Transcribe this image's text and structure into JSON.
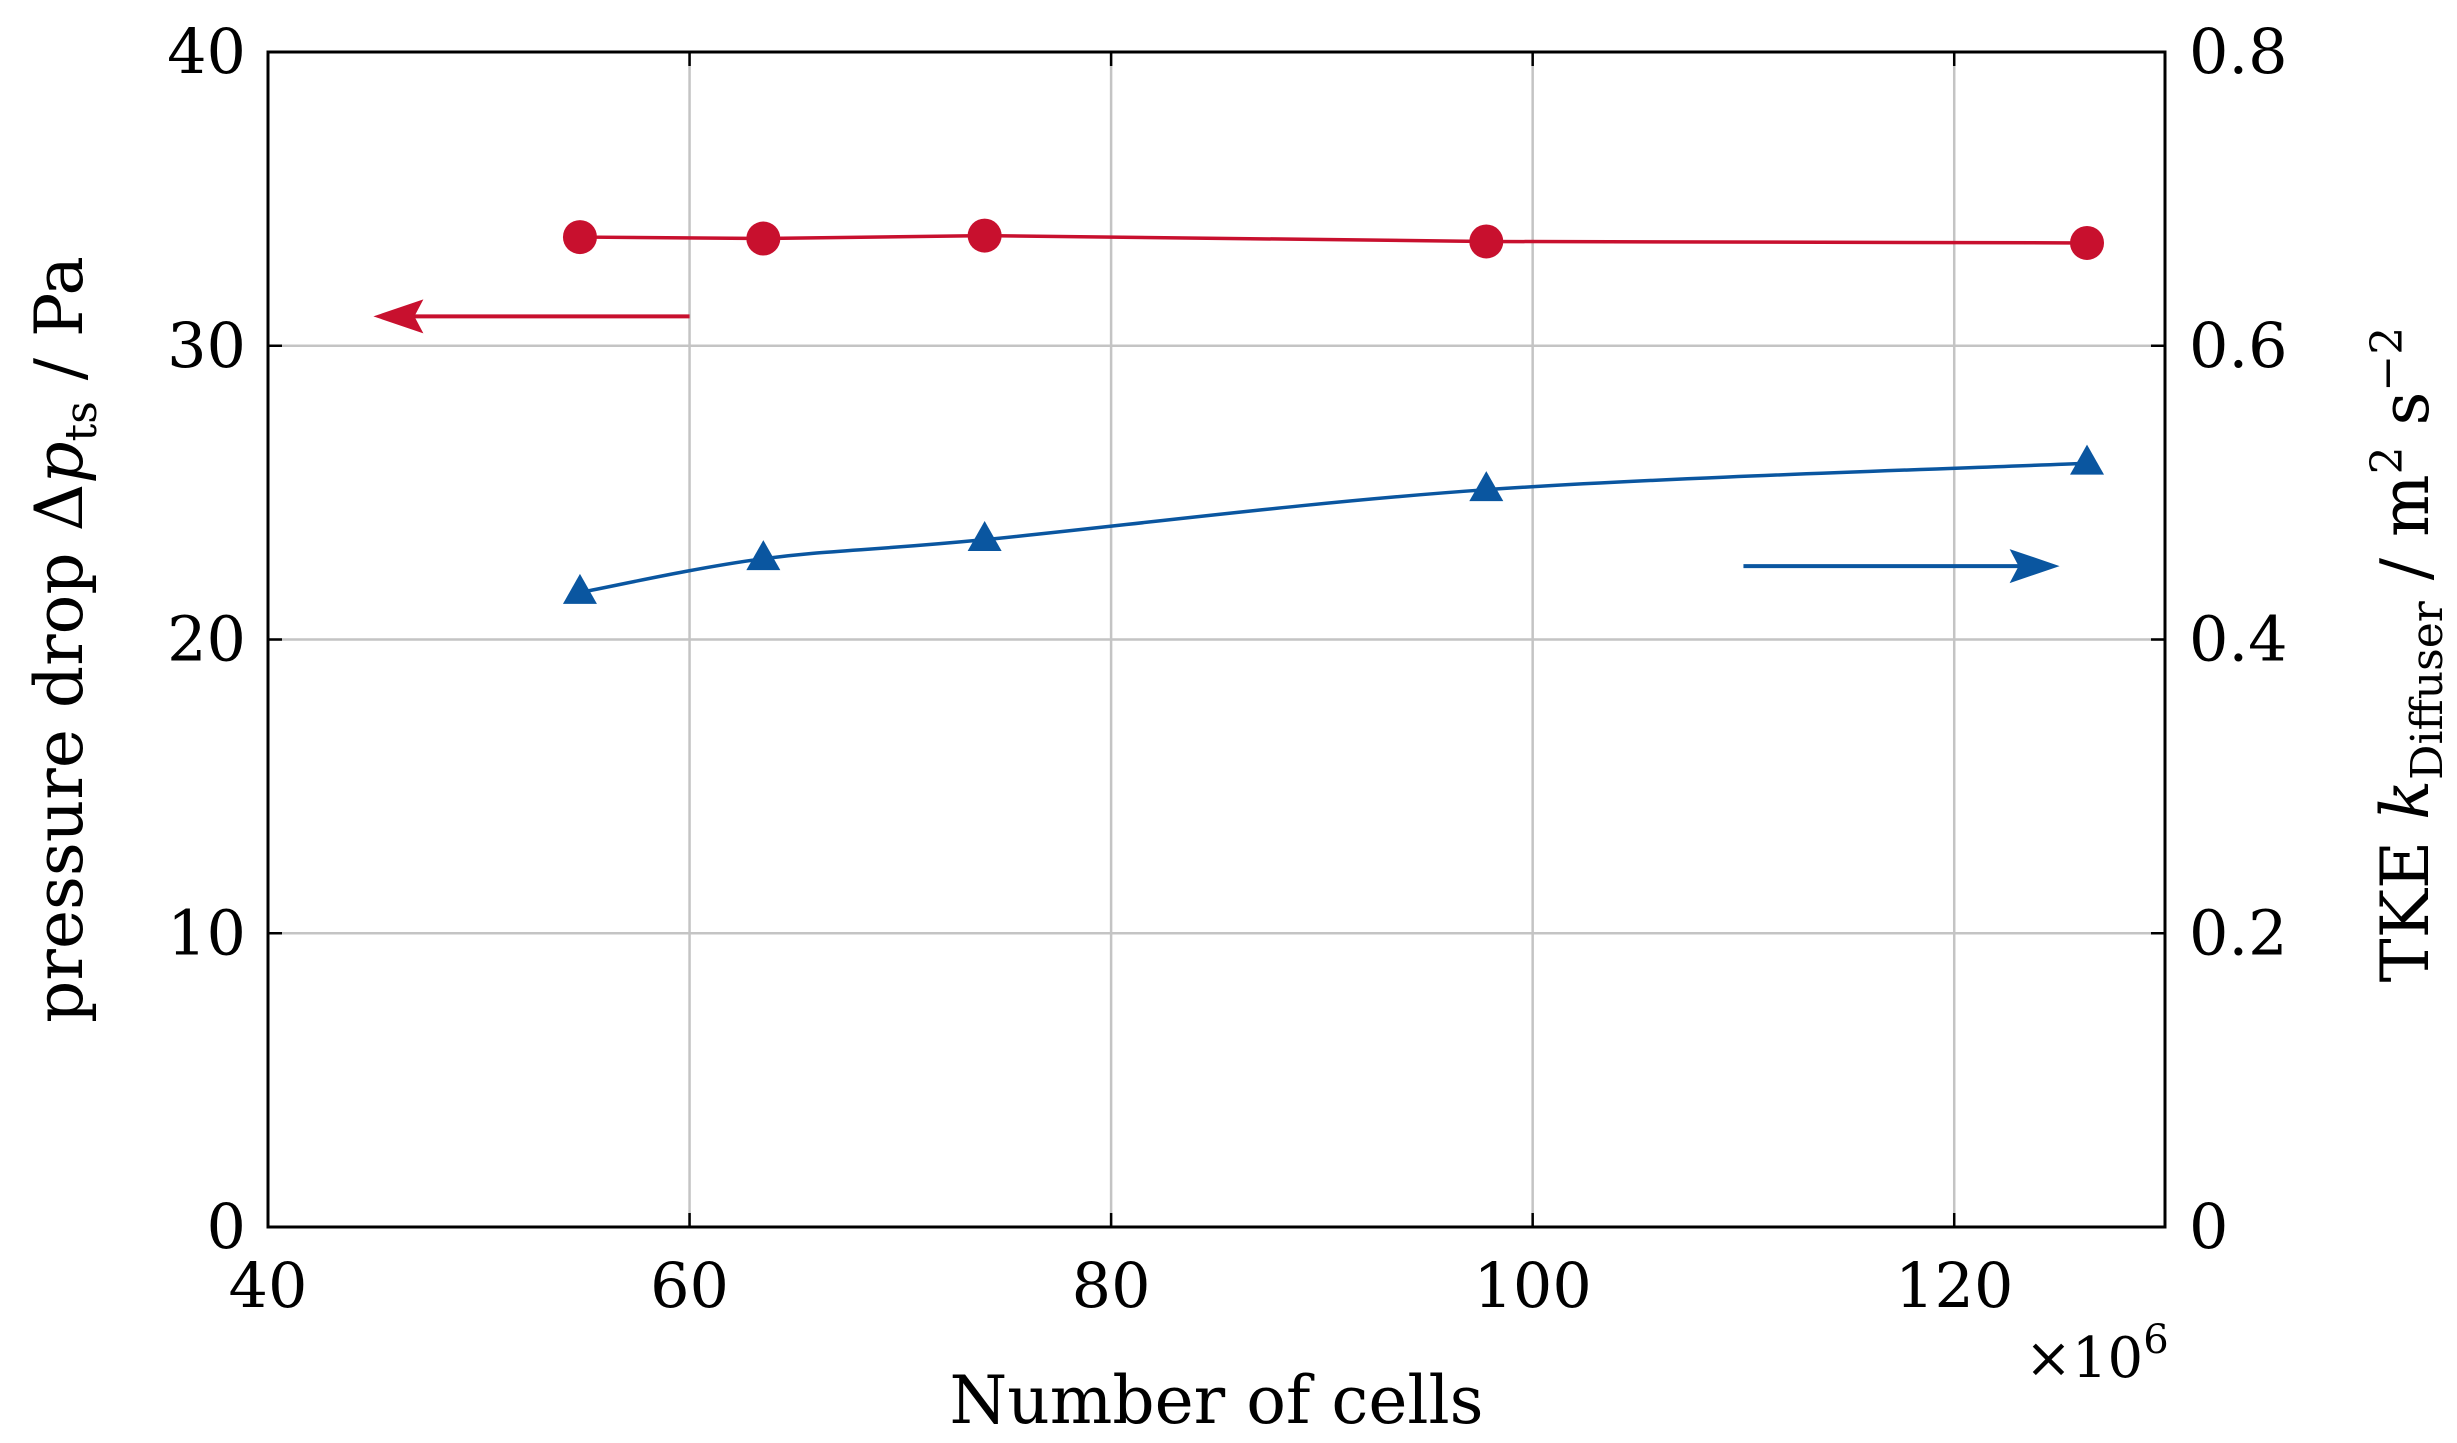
{
  "chart_data": {
    "type": "line",
    "title": "",
    "xlabel": "Number of cells",
    "x_multiplier": {
      "base": "×10",
      "exp": "6"
    },
    "xlim": [
      40,
      130
    ],
    "xticks": [
      40,
      60,
      80,
      100,
      120
    ],
    "ylabel_left": {
      "main": "pressure drop Δ",
      "var": "p",
      "sub": "ts",
      "unit": " / Pa"
    },
    "ylim_left": [
      0,
      40
    ],
    "yticks_left": [
      0,
      10,
      20,
      30,
      40
    ],
    "ylabel_right": {
      "main": "TKE ",
      "var": "k",
      "sub": "Diffuser",
      "unit1": " / m",
      "sup1": "2",
      "unit2": " s",
      "sup2": "−2"
    },
    "ylim_right": [
      0,
      0.8
    ],
    "yticks_right": [
      0,
      0.2,
      0.4,
      0.6,
      0.8
    ],
    "yticks_right_labels": [
      "0",
      "0.2",
      "0.4",
      "0.6",
      "0.8"
    ],
    "grid": true,
    "series": [
      {
        "name": "pressure drop",
        "axis": "left",
        "marker": "circle",
        "color": "#c8102e",
        "x": [
          54.8,
          63.5,
          74.0,
          97.8,
          126.3
        ],
        "y": [
          33.7,
          33.65,
          33.75,
          33.55,
          33.5
        ]
      },
      {
        "name": "TKE",
        "axis": "right",
        "marker": "triangle",
        "color": "#0a56a0",
        "x": [
          54.8,
          63.5,
          74.0,
          97.8,
          126.3
        ],
        "y": [
          0.432,
          0.455,
          0.468,
          0.502,
          0.52
        ]
      }
    ],
    "annotations": [
      {
        "name": "left-axis-arrow",
        "from": [
          60,
          31
        ],
        "to": [
          45,
          31
        ],
        "axis": "left",
        "color": "#c8102e"
      },
      {
        "name": "right-axis-arrow",
        "from": [
          110,
          0.45
        ],
        "to": [
          125,
          0.45
        ],
        "axis": "right",
        "color": "#0a56a0"
      }
    ]
  }
}
